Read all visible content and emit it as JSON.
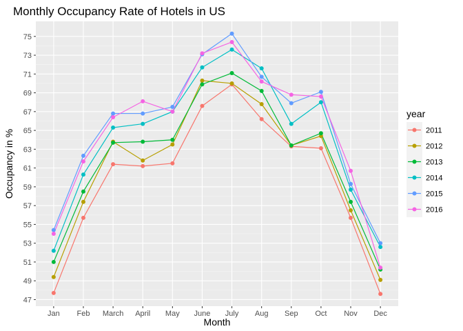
{
  "chart_data": {
    "type": "line",
    "title": "Monthly Occupancy Rate of Hotels in US",
    "xlabel": "Month",
    "ylabel": "Occupancy in %",
    "categories": [
      "Jan",
      "Feb",
      "March",
      "April",
      "May",
      "June",
      "July",
      "Aug",
      "Sep",
      "Oct",
      "Nov",
      "Dec"
    ],
    "ylim": [
      46.3,
      76.6
    ],
    "yticks": [
      "47",
      "49",
      "51",
      "53",
      "55",
      "57",
      "59",
      "61",
      "63",
      "65",
      "67",
      "69",
      "71",
      "73",
      "75"
    ],
    "grid": true,
    "legend": {
      "title": "year",
      "position": "right"
    },
    "series": [
      {
        "name": "2011",
        "color": "#F8766D",
        "values": [
          47.7,
          55.7,
          61.4,
          61.2,
          61.5,
          67.6,
          69.9,
          66.2,
          63.3,
          63.1,
          55.7,
          47.6
        ]
      },
      {
        "name": "2012",
        "color": "#B79F00",
        "values": [
          49.4,
          57.4,
          63.8,
          61.8,
          63.5,
          70.3,
          70.0,
          67.8,
          63.4,
          64.4,
          56.5,
          49.1
        ]
      },
      {
        "name": "2013",
        "color": "#00BA38",
        "values": [
          51.0,
          58.5,
          63.7,
          63.8,
          64.0,
          69.9,
          71.1,
          69.2,
          63.4,
          64.7,
          57.4,
          50.2
        ]
      },
      {
        "name": "2014",
        "color": "#00BFC4",
        "values": [
          52.2,
          60.3,
          65.3,
          65.7,
          67.0,
          71.7,
          73.6,
          71.6,
          65.7,
          68.0,
          58.7,
          52.6
        ]
      },
      {
        "name": "2015",
        "color": "#619CFF",
        "values": [
          54.4,
          62.3,
          66.8,
          66.8,
          67.5,
          73.1,
          75.3,
          70.7,
          67.9,
          69.1,
          59.3,
          53.0
        ]
      },
      {
        "name": "2016",
        "color": "#F564E3",
        "values": [
          54.0,
          61.7,
          66.4,
          68.1,
          67.0,
          73.2,
          74.4,
          70.2,
          68.8,
          68.6,
          60.7,
          50.4
        ]
      }
    ]
  }
}
